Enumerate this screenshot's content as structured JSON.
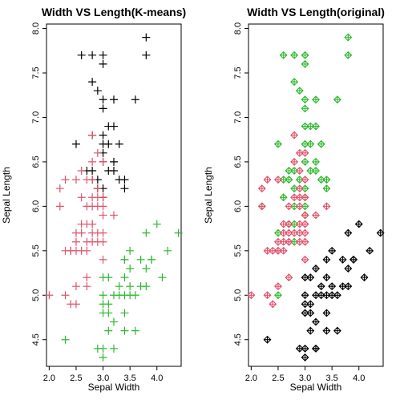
{
  "chart_data": [
    {
      "type": "scatter",
      "marker": "plus",
      "title": "Width VS Length(K-means)",
      "xlabel": "Sepal Width",
      "ylabel": "Sepal Length",
      "xlim": [
        1.95,
        4.45
      ],
      "ylim": [
        4.2,
        8.05
      ],
      "xticks": [
        "2.0",
        "2.5",
        "3.0",
        "3.5",
        "4.0"
      ],
      "yticks": [
        "4.5",
        "5.0",
        "5.5",
        "6.0",
        "6.5",
        "7.0",
        "7.5",
        "8.0"
      ],
      "colors": {
        "black": "#000000",
        "red": "#DF536B",
        "green": "#2DB82D"
      },
      "series": [
        {
          "color": "black",
          "points": [
            [
              3.8,
              7.9
            ],
            [
              3.8,
              7.7
            ],
            [
              2.6,
              7.7
            ],
            [
              2.8,
              7.7
            ],
            [
              3.0,
              7.7
            ],
            [
              3.0,
              7.6
            ],
            [
              2.8,
              7.4
            ],
            [
              2.9,
              7.3
            ],
            [
              3.0,
              7.2
            ],
            [
              3.6,
              7.2
            ],
            [
              3.2,
              7.2
            ],
            [
              3.0,
              7.1
            ],
            [
              3.1,
              6.9
            ],
            [
              2.8,
              6.8
            ],
            [
              3.0,
              6.8
            ],
            [
              3.2,
              6.9
            ],
            [
              2.5,
              6.7
            ],
            [
              3.1,
              6.7
            ],
            [
              3.3,
              6.7
            ],
            [
              3.0,
              6.7
            ],
            [
              3.0,
              6.6
            ],
            [
              3.0,
              6.5
            ],
            [
              3.2,
              6.5
            ],
            [
              2.8,
              6.4
            ],
            [
              3.1,
              6.4
            ],
            [
              3.2,
              6.4
            ],
            [
              2.7,
              6.4
            ],
            [
              2.8,
              6.3
            ],
            [
              3.3,
              6.3
            ],
            [
              3.4,
              6.3
            ],
            [
              2.9,
              6.3
            ],
            [
              3.0,
              6.2
            ],
            [
              3.4,
              6.2
            ],
            [
              2.9,
              6.2
            ],
            [
              3.0,
              6.1
            ]
          ]
        },
        {
          "color": "red",
          "points": [
            [
              2.8,
              6.8
            ],
            [
              2.9,
              6.6
            ],
            [
              2.8,
              6.5
            ],
            [
              3.0,
              6.5
            ],
            [
              2.6,
              6.4
            ],
            [
              2.8,
              6.3
            ],
            [
              2.3,
              6.3
            ],
            [
              2.5,
              6.3
            ],
            [
              2.7,
              6.3
            ],
            [
              2.2,
              6.2
            ],
            [
              2.9,
              6.2
            ],
            [
              2.6,
              6.1
            ],
            [
              2.8,
              6.1
            ],
            [
              2.9,
              6.1
            ],
            [
              3.0,
              6.1
            ],
            [
              2.2,
              6.0
            ],
            [
              2.7,
              6.0
            ],
            [
              2.9,
              6.0
            ],
            [
              3.0,
              6.0
            ],
            [
              2.8,
              6.0
            ],
            [
              3.0,
              5.9
            ],
            [
              3.2,
              5.9
            ],
            [
              2.7,
              5.8
            ],
            [
              2.6,
              5.8
            ],
            [
              2.8,
              5.8
            ],
            [
              2.6,
              5.7
            ],
            [
              2.8,
              5.7
            ],
            [
              2.9,
              5.7
            ],
            [
              3.0,
              5.7
            ],
            [
              2.5,
              5.7
            ],
            [
              2.5,
              5.6
            ],
            [
              2.7,
              5.6
            ],
            [
              2.8,
              5.6
            ],
            [
              2.9,
              5.6
            ],
            [
              3.0,
              5.6
            ],
            [
              2.3,
              5.5
            ],
            [
              2.4,
              5.5
            ],
            [
              2.5,
              5.5
            ],
            [
              2.6,
              5.5
            ],
            [
              2.7,
              5.5
            ],
            [
              2.4,
              5.5
            ],
            [
              3.0,
              5.4
            ],
            [
              2.7,
              5.2
            ],
            [
              2.5,
              5.1
            ],
            [
              2.7,
              5.1
            ],
            [
              2.3,
              5.0
            ],
            [
              2.0,
              5.0
            ],
            [
              2.4,
              4.9
            ],
            [
              2.5,
              4.9
            ],
            [
              2.8,
              5.8
            ]
          ]
        },
        {
          "color": "green",
          "points": [
            [
              4.0,
              5.8
            ],
            [
              4.4,
              5.7
            ],
            [
              3.8,
              5.7
            ],
            [
              3.9,
              5.4
            ],
            [
              4.2,
              5.5
            ],
            [
              3.4,
              5.4
            ],
            [
              3.7,
              5.4
            ],
            [
              3.5,
              5.5
            ],
            [
              3.8,
              5.1
            ],
            [
              3.5,
              5.1
            ],
            [
              3.3,
              5.1
            ],
            [
              3.4,
              5.2
            ],
            [
              4.1,
              5.2
            ],
            [
              3.7,
              5.1
            ],
            [
              3.4,
              5.0
            ],
            [
              3.5,
              5.0
            ],
            [
              3.6,
              5.0
            ],
            [
              3.0,
              5.0
            ],
            [
              3.1,
              4.9
            ],
            [
              3.0,
              4.9
            ],
            [
              3.1,
              4.8
            ],
            [
              3.4,
              4.8
            ],
            [
              3.0,
              4.8
            ],
            [
              3.2,
              4.7
            ],
            [
              3.1,
              4.6
            ],
            [
              3.6,
              4.6
            ],
            [
              3.4,
              4.6
            ],
            [
              2.3,
              4.5
            ],
            [
              3.0,
              4.4
            ],
            [
              2.9,
              4.4
            ],
            [
              3.2,
              4.4
            ],
            [
              3.0,
              4.3
            ],
            [
              3.8,
              5.3
            ],
            [
              3.5,
              5.3
            ],
            [
              3.3,
              5.0
            ],
            [
              3.2,
              5.0
            ],
            [
              3.4,
              5.4
            ],
            [
              3.9,
              5.4
            ],
            [
              3.0,
              5.2
            ],
            [
              3.1,
              5.2
            ]
          ]
        }
      ]
    },
    {
      "type": "scatter",
      "marker": "plus-in-diamond",
      "title": "Width VS Length(original)",
      "xlabel": "Sepal Width",
      "ylabel": "Sepal Length",
      "xlim": [
        1.95,
        4.45
      ],
      "ylim": [
        4.2,
        8.05
      ],
      "xticks": [
        "2.0",
        "2.5",
        "3.0",
        "3.5",
        "4.0"
      ],
      "yticks": [
        "4.5",
        "5.0",
        "5.5",
        "6.0",
        "6.5",
        "7.0",
        "7.5",
        "8.0"
      ],
      "colors": {
        "black": "#000000",
        "red": "#DF536B",
        "green": "#2DB82D"
      },
      "series": [
        {
          "color": "green",
          "points": [
            [
              3.8,
              7.9
            ],
            [
              3.8,
              7.7
            ],
            [
              2.6,
              7.7
            ],
            [
              2.8,
              7.7
            ],
            [
              3.0,
              7.7
            ],
            [
              3.0,
              7.6
            ],
            [
              2.8,
              7.4
            ],
            [
              2.9,
              7.3
            ],
            [
              3.0,
              7.2
            ],
            [
              3.6,
              7.2
            ],
            [
              3.2,
              7.2
            ],
            [
              3.0,
              7.1
            ],
            [
              3.1,
              6.9
            ],
            [
              3.2,
              6.9
            ],
            [
              2.5,
              6.7
            ],
            [
              3.1,
              6.7
            ],
            [
              3.3,
              6.7
            ],
            [
              3.0,
              6.7
            ],
            [
              3.0,
              6.5
            ],
            [
              3.2,
              6.5
            ],
            [
              2.8,
              6.4
            ],
            [
              3.1,
              6.4
            ],
            [
              3.2,
              6.4
            ],
            [
              2.7,
              6.4
            ],
            [
              3.3,
              6.3
            ],
            [
              3.4,
              6.3
            ],
            [
              2.9,
              6.3
            ],
            [
              3.0,
              6.2
            ],
            [
              3.4,
              6.2
            ],
            [
              2.8,
              6.2
            ],
            [
              3.0,
              6.1
            ],
            [
              2.6,
              6.1
            ],
            [
              2.2,
              6.0
            ],
            [
              3.0,
              6.0
            ],
            [
              3.0,
              5.9
            ],
            [
              2.7,
              5.8
            ],
            [
              2.8,
              5.8
            ],
            [
              2.5,
              5.7
            ],
            [
              2.8,
              5.6
            ],
            [
              2.5,
              5.0
            ],
            [
              2.6,
              6.3
            ],
            [
              2.7,
              6.3
            ],
            [
              3.0,
              6.9
            ],
            [
              2.8,
              6.0
            ]
          ]
        },
        {
          "color": "red",
          "points": [
            [
              2.8,
              6.8
            ],
            [
              2.9,
              6.6
            ],
            [
              3.0,
              6.6
            ],
            [
              2.8,
              6.5
            ],
            [
              2.9,
              6.4
            ],
            [
              3.0,
              6.3
            ],
            [
              2.3,
              6.3
            ],
            [
              2.5,
              6.3
            ],
            [
              2.2,
              6.2
            ],
            [
              2.9,
              6.2
            ],
            [
              2.8,
              6.1
            ],
            [
              2.9,
              6.1
            ],
            [
              3.0,
              6.1
            ],
            [
              2.2,
              6.0
            ],
            [
              2.7,
              6.0
            ],
            [
              2.9,
              6.0
            ],
            [
              3.4,
              6.0
            ],
            [
              3.0,
              5.9
            ],
            [
              3.2,
              5.9
            ],
            [
              2.7,
              5.8
            ],
            [
              2.6,
              5.8
            ],
            [
              2.6,
              5.7
            ],
            [
              2.8,
              5.7
            ],
            [
              2.9,
              5.7
            ],
            [
              3.0,
              5.7
            ],
            [
              2.5,
              5.6
            ],
            [
              2.7,
              5.6
            ],
            [
              2.9,
              5.6
            ],
            [
              3.0,
              5.6
            ],
            [
              2.3,
              5.5
            ],
            [
              2.4,
              5.5
            ],
            [
              2.5,
              5.5
            ],
            [
              2.6,
              5.5
            ],
            [
              3.0,
              5.4
            ],
            [
              2.7,
              5.2
            ],
            [
              2.5,
              5.1
            ],
            [
              2.3,
              5.0
            ],
            [
              2.0,
              5.0
            ],
            [
              2.4,
              4.9
            ],
            [
              2.7,
              5.6
            ],
            [
              2.5,
              5.5
            ],
            [
              2.6,
              5.6
            ],
            [
              3.0,
              5.8
            ],
            [
              2.7,
              5.7
            ],
            [
              2.9,
              5.8
            ]
          ]
        },
        {
          "color": "black",
          "points": [
            [
              4.0,
              5.8
            ],
            [
              4.4,
              5.7
            ],
            [
              3.8,
              5.7
            ],
            [
              3.9,
              5.4
            ],
            [
              4.2,
              5.5
            ],
            [
              3.4,
              5.4
            ],
            [
              3.7,
              5.4
            ],
            [
              3.5,
              5.5
            ],
            [
              3.8,
              5.1
            ],
            [
              3.5,
              5.1
            ],
            [
              3.3,
              5.1
            ],
            [
              3.4,
              5.2
            ],
            [
              4.1,
              5.2
            ],
            [
              3.7,
              5.1
            ],
            [
              3.4,
              5.0
            ],
            [
              3.5,
              5.0
            ],
            [
              3.6,
              5.0
            ],
            [
              3.0,
              5.0
            ],
            [
              3.1,
              4.9
            ],
            [
              3.0,
              4.9
            ],
            [
              3.1,
              4.8
            ],
            [
              3.4,
              4.8
            ],
            [
              3.0,
              4.8
            ],
            [
              3.2,
              4.7
            ],
            [
              3.1,
              4.6
            ],
            [
              3.6,
              4.6
            ],
            [
              3.4,
              4.6
            ],
            [
              2.3,
              4.5
            ],
            [
              3.0,
              4.4
            ],
            [
              2.9,
              4.4
            ],
            [
              3.2,
              4.4
            ],
            [
              3.0,
              4.3
            ],
            [
              3.8,
              5.3
            ],
            [
              3.3,
              5.0
            ],
            [
              3.2,
              5.0
            ],
            [
              3.9,
              5.4
            ],
            [
              3.0,
              5.2
            ],
            [
              3.1,
              5.2
            ],
            [
              3.2,
              4.4
            ],
            [
              3.2,
              5.3
            ]
          ]
        }
      ]
    }
  ]
}
